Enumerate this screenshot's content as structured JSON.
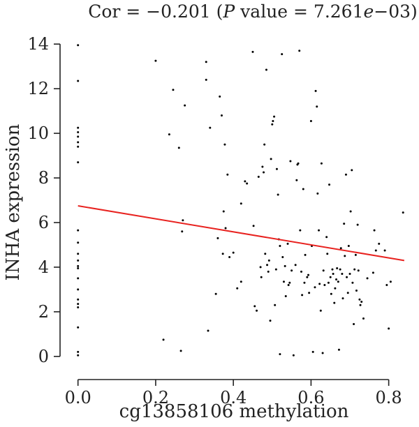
{
  "chart_data": {
    "type": "scatter",
    "title": "Cor = −0.201 (P value = 7.261e−03)",
    "title_parts": {
      "prefix": "Cor = −0.201 (",
      "p_italic": "P",
      "middle": " value = 7.261",
      "e_italic": "e",
      "suffix": "−03)"
    },
    "xlabel": "cg13858106 methylation",
    "ylabel": "INHA expression",
    "xlim": [
      -0.03,
      0.86
    ],
    "ylim": [
      -0.6,
      14.6
    ],
    "x_ticks": [
      0.0,
      0.2,
      0.4,
      0.6,
      0.8
    ],
    "x_tick_labels": [
      "0.0",
      "0.2",
      "0.4",
      "0.6",
      "0.8"
    ],
    "y_ticks": [
      0,
      2,
      4,
      6,
      8,
      10,
      12,
      14
    ],
    "y_tick_labels": [
      "0",
      "2",
      "4",
      "6",
      "8",
      "10",
      "12",
      "14"
    ],
    "point_color": "#000000",
    "fit_line_color": "#e8221f",
    "fit_line": {
      "x": [
        0.0,
        0.84
      ],
      "y": [
        6.75,
        4.3
      ]
    },
    "points": [
      [
        0.0,
        13.95
      ],
      [
        0.0,
        12.35
      ],
      [
        0.0,
        10.25
      ],
      [
        0.0,
        10.05
      ],
      [
        0.0,
        9.85
      ],
      [
        0.0,
        9.6
      ],
      [
        0.0,
        9.4
      ],
      [
        0.0,
        8.7
      ],
      [
        0.0,
        5.65
      ],
      [
        0.0,
        5.1
      ],
      [
        0.0,
        4.6
      ],
      [
        0.0,
        4.3
      ],
      [
        0.0,
        4.05
      ],
      [
        0.0,
        3.95
      ],
      [
        0.0,
        3.5
      ],
      [
        0.0,
        3.0
      ],
      [
        0.0,
        2.55
      ],
      [
        0.0,
        2.35
      ],
      [
        0.0,
        2.2
      ],
      [
        0.0,
        1.3
      ],
      [
        0.0,
        0.2
      ],
      [
        0.0,
        0.05
      ],
      [
        0.2,
        13.25
      ],
      [
        0.22,
        0.75
      ],
      [
        0.235,
        9.95
      ],
      [
        0.245,
        11.95
      ],
      [
        0.26,
        9.35
      ],
      [
        0.265,
        0.25
      ],
      [
        0.268,
        5.6
      ],
      [
        0.27,
        6.1
      ],
      [
        0.275,
        11.25
      ],
      [
        0.33,
        13.2
      ],
      [
        0.33,
        12.4
      ],
      [
        0.335,
        1.15
      ],
      [
        0.34,
        10.25
      ],
      [
        0.355,
        2.8
      ],
      [
        0.36,
        5.3
      ],
      [
        0.365,
        11.65
      ],
      [
        0.37,
        10.8
      ],
      [
        0.373,
        4.6
      ],
      [
        0.375,
        6.5
      ],
      [
        0.378,
        9.5
      ],
      [
        0.38,
        5.75
      ],
      [
        0.385,
        8.15
      ],
      [
        0.39,
        4.45
      ],
      [
        0.4,
        4.65
      ],
      [
        0.41,
        3.05
      ],
      [
        0.42,
        6.85
      ],
      [
        0.42,
        3.35
      ],
      [
        0.43,
        7.85
      ],
      [
        0.435,
        7.75
      ],
      [
        0.45,
        13.65
      ],
      [
        0.452,
        5.85
      ],
      [
        0.455,
        2.25
      ],
      [
        0.46,
        2.05
      ],
      [
        0.465,
        8.05
      ],
      [
        0.47,
        4.0
      ],
      [
        0.472,
        3.55
      ],
      [
        0.475,
        8.5
      ],
      [
        0.478,
        8.25
      ],
      [
        0.48,
        9.5
      ],
      [
        0.482,
        4.6
      ],
      [
        0.485,
        12.85
      ],
      [
        0.487,
        4.1
      ],
      [
        0.49,
        3.8
      ],
      [
        0.492,
        4.3
      ],
      [
        0.495,
        1.6
      ],
      [
        0.497,
        8.85
      ],
      [
        0.5,
        10.4
      ],
      [
        0.502,
        10.55
      ],
      [
        0.505,
        10.75
      ],
      [
        0.507,
        2.3
      ],
      [
        0.51,
        3.9
      ],
      [
        0.512,
        8.4
      ],
      [
        0.515,
        7.25
      ],
      [
        0.517,
        5.25
      ],
      [
        0.52,
        4.95
      ],
      [
        0.52,
        0.1
      ],
      [
        0.525,
        13.55
      ],
      [
        0.527,
        4.45
      ],
      [
        0.53,
        3.35
      ],
      [
        0.533,
        4.05
      ],
      [
        0.535,
        2.7
      ],
      [
        0.54,
        5.05
      ],
      [
        0.542,
        3.2
      ],
      [
        0.545,
        3.3
      ],
      [
        0.547,
        8.75
      ],
      [
        0.55,
        3.85
      ],
      [
        0.555,
        0.05
      ],
      [
        0.56,
        4.1
      ],
      [
        0.563,
        7.9
      ],
      [
        0.565,
        8.6
      ],
      [
        0.567,
        8.65
      ],
      [
        0.57,
        13.7
      ],
      [
        0.572,
        5.65
      ],
      [
        0.575,
        3.8
      ],
      [
        0.577,
        2.75
      ],
      [
        0.58,
        7.5
      ],
      [
        0.583,
        3.3
      ],
      [
        0.585,
        4.55
      ],
      [
        0.59,
        3.55
      ],
      [
        0.593,
        3.65
      ],
      [
        0.595,
        2.85
      ],
      [
        0.6,
        10.55
      ],
      [
        0.602,
        4.95
      ],
      [
        0.605,
        0.2
      ],
      [
        0.61,
        3.1
      ],
      [
        0.612,
        11.9
      ],
      [
        0.615,
        11.2
      ],
      [
        0.617,
        7.3
      ],
      [
        0.62,
        5.65
      ],
      [
        0.622,
        3.25
      ],
      [
        0.625,
        2.05
      ],
      [
        0.627,
        8.65
      ],
      [
        0.63,
        0.15
      ],
      [
        0.632,
        3.85
      ],
      [
        0.635,
        3.2
      ],
      [
        0.64,
        5.35
      ],
      [
        0.642,
        4.6
      ],
      [
        0.645,
        3.3
      ],
      [
        0.647,
        7.7
      ],
      [
        0.65,
        3.55
      ],
      [
        0.652,
        2.8
      ],
      [
        0.655,
        3.9
      ],
      [
        0.657,
        3.7
      ],
      [
        0.66,
        2.4
      ],
      [
        0.662,
        3.05
      ],
      [
        0.665,
        3.45
      ],
      [
        0.667,
        3.95
      ],
      [
        0.67,
        3.35
      ],
      [
        0.672,
        0.3
      ],
      [
        0.675,
        3.9
      ],
      [
        0.677,
        4.85
      ],
      [
        0.68,
        3.7
      ],
      [
        0.682,
        2.6
      ],
      [
        0.685,
        5.95
      ],
      [
        0.687,
        4.5
      ],
      [
        0.69,
        8.15
      ],
      [
        0.692,
        3.55
      ],
      [
        0.695,
        2.85
      ],
      [
        0.697,
        4.95
      ],
      [
        0.7,
        3.7
      ],
      [
        0.702,
        6.5
      ],
      [
        0.705,
        8.35
      ],
      [
        0.707,
        3.3
      ],
      [
        0.71,
        1.45
      ],
      [
        0.712,
        3.9
      ],
      [
        0.715,
        4.55
      ],
      [
        0.717,
        2.95
      ],
      [
        0.72,
        5.9
      ],
      [
        0.722,
        3.85
      ],
      [
        0.725,
        2.55
      ],
      [
        0.727,
        2.3
      ],
      [
        0.73,
        2.45
      ],
      [
        0.735,
        1.7
      ],
      [
        0.745,
        3.5
      ],
      [
        0.76,
        3.75
      ],
      [
        0.763,
        5.65
      ],
      [
        0.767,
        4.75
      ],
      [
        0.775,
        5.05
      ],
      [
        0.79,
        4.75
      ],
      [
        0.795,
        3.2
      ],
      [
        0.8,
        1.25
      ],
      [
        0.805,
        3.35
      ],
      [
        0.837,
        6.45
      ]
    ]
  }
}
